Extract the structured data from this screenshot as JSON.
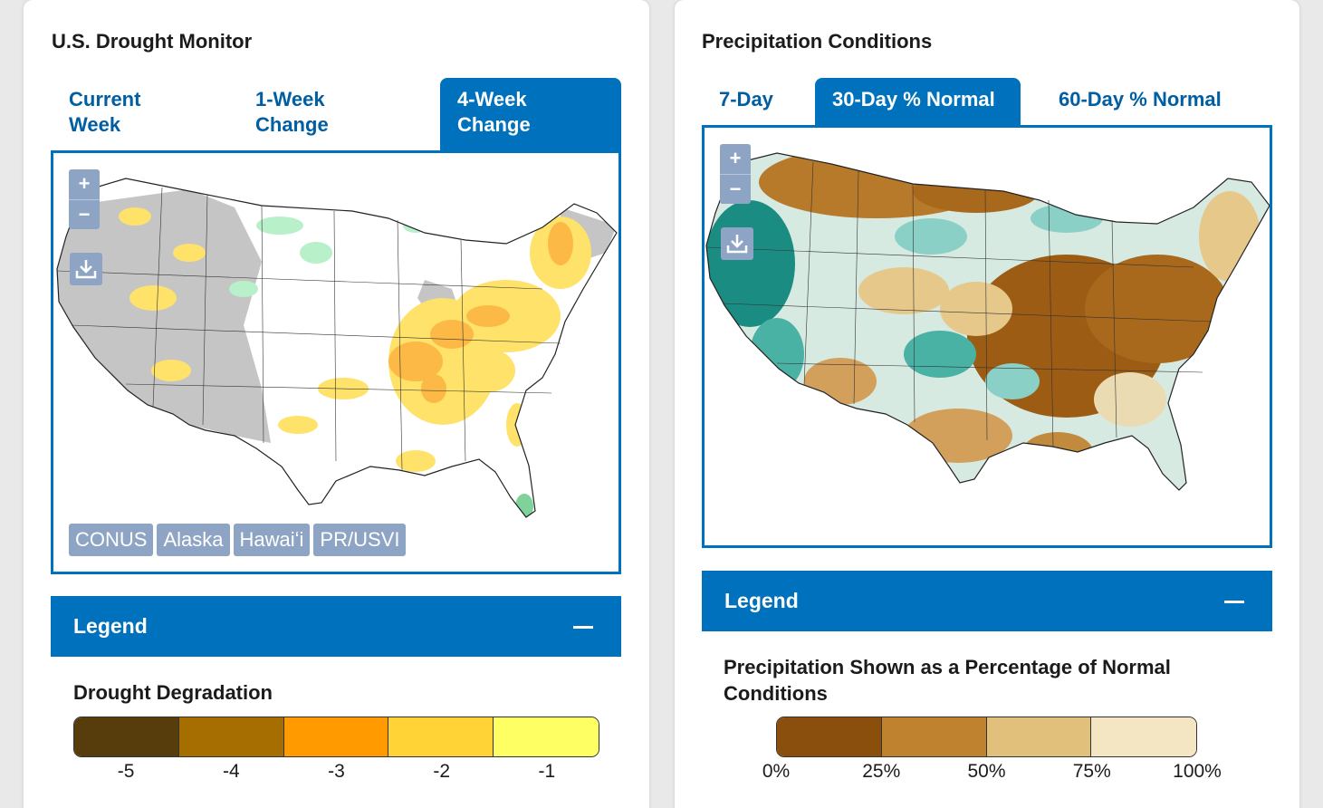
{
  "drought_monitor": {
    "title": "U.S. Drought Monitor",
    "tabs": [
      {
        "label_line1": "Current",
        "label_line2": "Week",
        "active": false
      },
      {
        "label_line1": "1-Week",
        "label_line2": "Change",
        "active": false
      },
      {
        "label_line1": "4-Week",
        "label_line2": "Change",
        "active": true
      }
    ],
    "zoom_in": "+",
    "zoom_out": "−",
    "regions": [
      "CONUS",
      "Alaska",
      "Hawaiʻi",
      "PR/USVI"
    ],
    "legend": {
      "label": "Legend",
      "subtitle": "Drought Degradation",
      "categories": [
        {
          "label": "-5",
          "color": "#583d0c"
        },
        {
          "label": "-4",
          "color": "#a66d00"
        },
        {
          "label": "-3",
          "color": "#ff9a00"
        },
        {
          "label": "-2",
          "color": "#ffd335"
        },
        {
          "label": "-1",
          "color": "#fdff63"
        }
      ]
    }
  },
  "precipitation": {
    "title": "Precipitation Conditions",
    "tabs": [
      {
        "label": "7-Day",
        "active": false
      },
      {
        "label": "30-Day % Normal",
        "active": true
      },
      {
        "label": "60-Day % Normal",
        "active": false
      }
    ],
    "zoom_in": "+",
    "zoom_out": "−",
    "legend": {
      "label": "Legend",
      "subtitle_line1": "Precipitation Shown as a Percentage of Normal",
      "subtitle_line2": "Conditions",
      "colors": [
        "#8a4f0c",
        "#bf8330",
        "#e1c07b",
        "#f5e6c3"
      ],
      "ticks": [
        "0%",
        "25%",
        "50%",
        "75%",
        "100%"
      ]
    }
  }
}
